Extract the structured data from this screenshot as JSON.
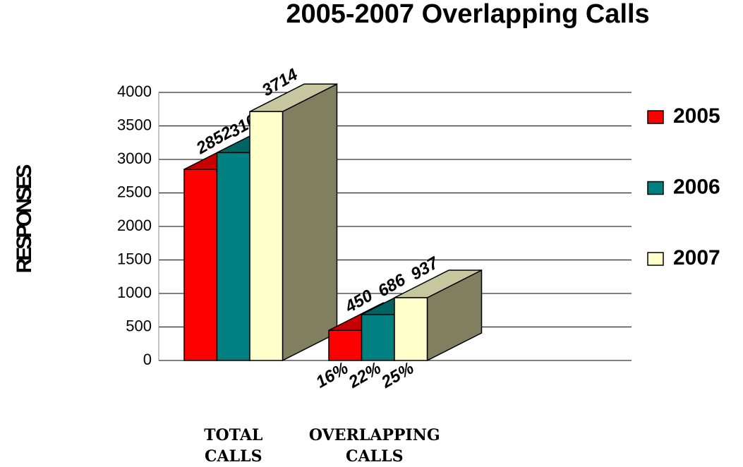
{
  "chart_data": {
    "type": "bar3d",
    "title": "2005-2007 Overlapping Calls",
    "y_label": "RESPONSES",
    "categories": [
      "TOTAL CALLS",
      "OVERLAPPING CALLS"
    ],
    "series": [
      {
        "name": "2005",
        "color": "#ff0000",
        "values": [
          2852,
          450
        ]
      },
      {
        "name": "2006",
        "color": "#008080",
        "values": [
          3101,
          686
        ]
      },
      {
        "name": "2007",
        "color": "#ffffcc",
        "values": [
          3714,
          937
        ]
      }
    ],
    "annotations": [
      "16%",
      "22%",
      "25%"
    ],
    "ylim": [
      0,
      4000
    ],
    "yticks": [
      0,
      500,
      1000,
      1500,
      2000,
      2500,
      3000,
      3500,
      4000
    ],
    "grid": true,
    "legend": "right"
  }
}
